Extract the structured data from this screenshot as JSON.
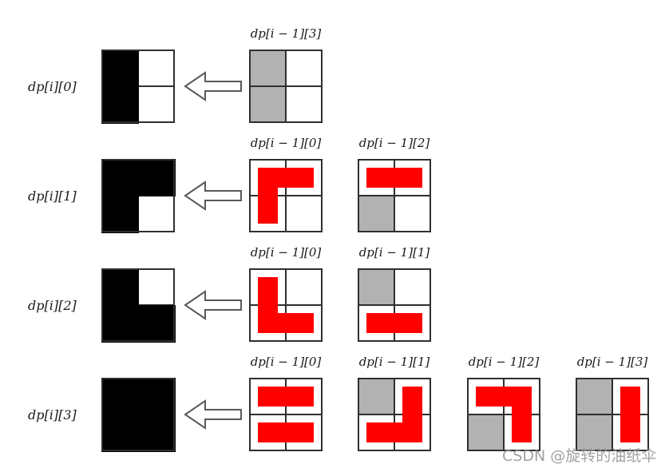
{
  "title": "dp state transition diagram for 2xN domino tiling",
  "watermark": {
    "text": "CSDN @旋转的油纸伞",
    "color": "#8c8c8c"
  },
  "colors": {
    "background": "#ffffff",
    "black_cell": "#000000",
    "gray_cell": "#b2b2b2",
    "red_shape": "#ff0000",
    "grid_line": "#2f2f2f",
    "arrow_stroke": "#595959",
    "arrow_fill": "#ffffff",
    "label_color": "#1a1a1a"
  },
  "rows": [
    {
      "label": "dp[i][0]",
      "target": {
        "black_cells": [
          "tl",
          "bl"
        ]
      },
      "sources": [
        {
          "label": "dp[i − 1][3]",
          "gray_cells": [
            "tl",
            "bl"
          ],
          "red_shape": "none"
        }
      ]
    },
    {
      "label": "dp[i][1]",
      "target": {
        "black_cells": [
          "tl",
          "tr",
          "bl"
        ]
      },
      "sources": [
        {
          "label": "dp[i − 1][0]",
          "gray_cells": [],
          "red_shape": "corner-top-left"
        },
        {
          "label": "dp[i − 1][2]",
          "gray_cells": [
            "bl"
          ],
          "red_shape": "bar-top"
        }
      ]
    },
    {
      "label": "dp[i][2]",
      "target": {
        "black_cells": [
          "tl",
          "bl",
          "br"
        ]
      },
      "sources": [
        {
          "label": "dp[i − 1][0]",
          "gray_cells": [],
          "red_shape": "corner-bottom-left"
        },
        {
          "label": "dp[i − 1][1]",
          "gray_cells": [
            "tl"
          ],
          "red_shape": "bar-bottom"
        }
      ]
    },
    {
      "label": "dp[i][3]",
      "target": {
        "black_cells": [
          "tl",
          "tr",
          "bl",
          "br"
        ]
      },
      "sources": [
        {
          "label": "dp[i − 1][0]",
          "gray_cells": [],
          "red_shape": "double-bar"
        },
        {
          "label": "dp[i − 1][1]",
          "gray_cells": [
            "tl"
          ],
          "red_shape": "corner-bottom-right"
        },
        {
          "label": "dp[i − 1][2]",
          "gray_cells": [
            "bl"
          ],
          "red_shape": "corner-top-right"
        },
        {
          "label": "dp[i − 1][3]",
          "gray_cells": [
            "tl",
            "bl"
          ],
          "red_shape": "bar-right"
        }
      ]
    }
  ]
}
